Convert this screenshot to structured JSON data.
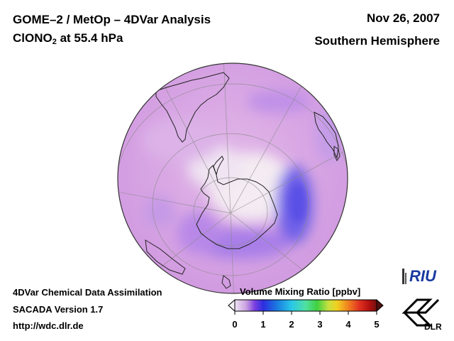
{
  "header": {
    "title": "GOME–2 / MetOp – 4DVar Analysis",
    "species_prefix": "ClONO",
    "species_subscript": "2",
    "species_suffix": " at 55.4 hPa",
    "date": "Nov 26, 2007",
    "region": "Southern Hemisphere"
  },
  "footer": {
    "line1": "4DVar Chemical Data Assimilation",
    "line2": "SACADA Version 1.7",
    "line3": "http://wdc.dlr.de"
  },
  "colorbar": {
    "title": "Volume Mixing Ratio [ppbv]",
    "ticks": [
      "0",
      "1",
      "2",
      "3",
      "4",
      "5"
    ],
    "range": [
      0,
      5
    ],
    "colors": [
      "#e6d8f0",
      "#c9a0e0",
      "#7b3fe0",
      "#2d2de0",
      "#1a7de0",
      "#29c8e8",
      "#50e0a0",
      "#40d040",
      "#c8e040",
      "#f0d020",
      "#f08020",
      "#e03020",
      "#b01010",
      "#701010"
    ]
  },
  "map": {
    "projection": "orthographic",
    "hemisphere": "south",
    "colors": {
      "base": "#d29ce0",
      "light": "#f0e6f2",
      "enhanced": "#9b7fe8",
      "high": "#6a5fe8"
    }
  },
  "logos": {
    "riu": "RIU",
    "dlr": "DLR"
  }
}
